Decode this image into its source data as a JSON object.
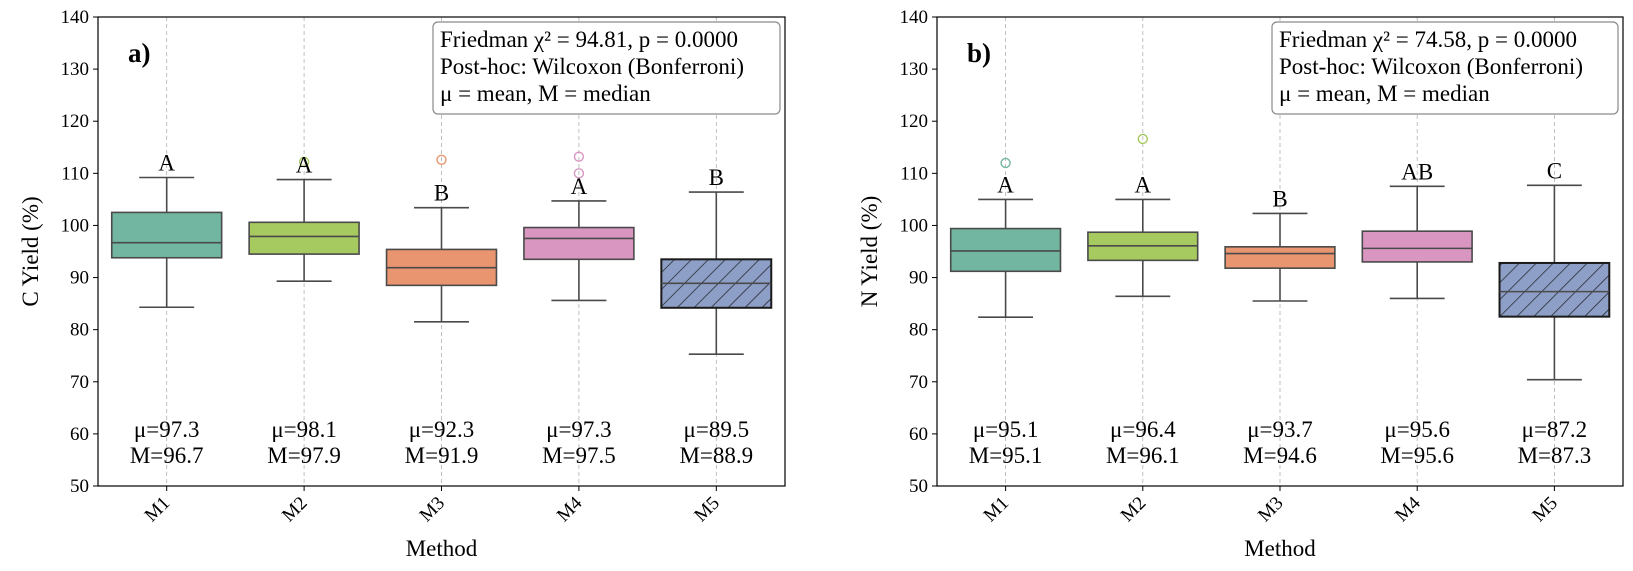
{
  "chart_data": [
    {
      "type": "box",
      "panel_label": "a)",
      "xlabel": "Method",
      "ylabel": "C Yield (%)",
      "ylim": [
        50,
        140
      ],
      "yticks": [
        50,
        60,
        70,
        80,
        90,
        100,
        110,
        120,
        130,
        140
      ],
      "categories": [
        "M1",
        "M2",
        "M3",
        "M4",
        "M5"
      ],
      "boxes": [
        {
          "category": "M1",
          "whisker_low": 84.3,
          "q1": 93.8,
          "median": 96.7,
          "q3": 102.5,
          "whisker_high": 109.2,
          "outliers": [],
          "color": "#72b6a1",
          "hatched": false
        },
        {
          "category": "M2",
          "whisker_low": 89.3,
          "q1": 94.5,
          "median": 97.9,
          "q3": 100.6,
          "whisker_high": 108.8,
          "outliers": [
            112.2
          ],
          "color": "#a6c960",
          "hatched": false
        },
        {
          "category": "M3",
          "whisker_low": 81.5,
          "q1": 88.5,
          "median": 91.9,
          "q3": 95.4,
          "whisker_high": 103.4,
          "outliers": [
            112.6
          ],
          "color": "#e9956f",
          "hatched": false
        },
        {
          "category": "M4",
          "whisker_low": 85.6,
          "q1": 93.5,
          "median": 97.5,
          "q3": 99.6,
          "whisker_high": 104.7,
          "outliers": [
            110.0,
            113.2
          ],
          "color": "#d996c1",
          "hatched": false
        },
        {
          "category": "M5",
          "whisker_low": 75.3,
          "q1": 84.2,
          "median": 88.9,
          "q3": 93.5,
          "whisker_high": 106.4,
          "outliers": [],
          "color": "#8d9fc7",
          "hatched": true
        }
      ],
      "significance_letters": [
        "A",
        "A",
        "B",
        "A",
        "B"
      ],
      "means": [
        "μ=97.3",
        "μ=98.1",
        "μ=92.3",
        "μ=97.3",
        "μ=89.5"
      ],
      "medians_text": [
        "M=96.7",
        "M=97.9",
        "M=91.9",
        "M=97.5",
        "M=88.9"
      ],
      "legend_lines": [
        "Friedman χ² = 94.81, p = 0.0000",
        "Post-hoc: Wilcoxon (Bonferroni)",
        "μ = mean, M = median"
      ],
      "legend_placement": "top-right",
      "grid": "vertical-dashed"
    },
    {
      "type": "box",
      "panel_label": "b)",
      "xlabel": "Method",
      "ylabel": "N Yield (%)",
      "ylim": [
        50,
        140
      ],
      "yticks": [
        50,
        60,
        70,
        80,
        90,
        100,
        110,
        120,
        130,
        140
      ],
      "categories": [
        "M1",
        "M2",
        "M3",
        "M4",
        "M5"
      ],
      "boxes": [
        {
          "category": "M1",
          "whisker_low": 82.4,
          "q1": 91.2,
          "median": 95.1,
          "q3": 99.4,
          "whisker_high": 105.0,
          "outliers": [
            112.0
          ],
          "color": "#72b6a1",
          "hatched": false
        },
        {
          "category": "M2",
          "whisker_low": 86.4,
          "q1": 93.3,
          "median": 96.1,
          "q3": 98.7,
          "whisker_high": 105.0,
          "outliers": [
            116.6
          ],
          "color": "#a6c960",
          "hatched": false
        },
        {
          "category": "M3",
          "whisker_low": 85.5,
          "q1": 91.8,
          "median": 94.6,
          "q3": 95.9,
          "whisker_high": 102.3,
          "outliers": [],
          "color": "#e9956f",
          "hatched": false
        },
        {
          "category": "M4",
          "whisker_low": 86.0,
          "q1": 93.0,
          "median": 95.6,
          "q3": 98.9,
          "whisker_high": 107.5,
          "outliers": [],
          "color": "#d996c1",
          "hatched": false
        },
        {
          "category": "M5",
          "whisker_low": 70.4,
          "q1": 82.5,
          "median": 87.3,
          "q3": 92.8,
          "whisker_high": 107.7,
          "outliers": [],
          "color": "#8d9fc7",
          "hatched": true
        }
      ],
      "significance_letters": [
        "A",
        "A",
        "B",
        "AB",
        "C"
      ],
      "means": [
        "μ=95.1",
        "μ=96.4",
        "μ=93.7",
        "μ=95.6",
        "μ=87.2"
      ],
      "medians_text": [
        "M=95.1",
        "M=96.1",
        "M=94.6",
        "M=95.6",
        "M=87.3"
      ],
      "legend_lines": [
        "Friedman χ² = 74.58, p = 0.0000",
        "Post-hoc: Wilcoxon (Bonferroni)",
        "μ = mean, M = median"
      ],
      "legend_placement": "top-right",
      "grid": "vertical-dashed"
    }
  ]
}
